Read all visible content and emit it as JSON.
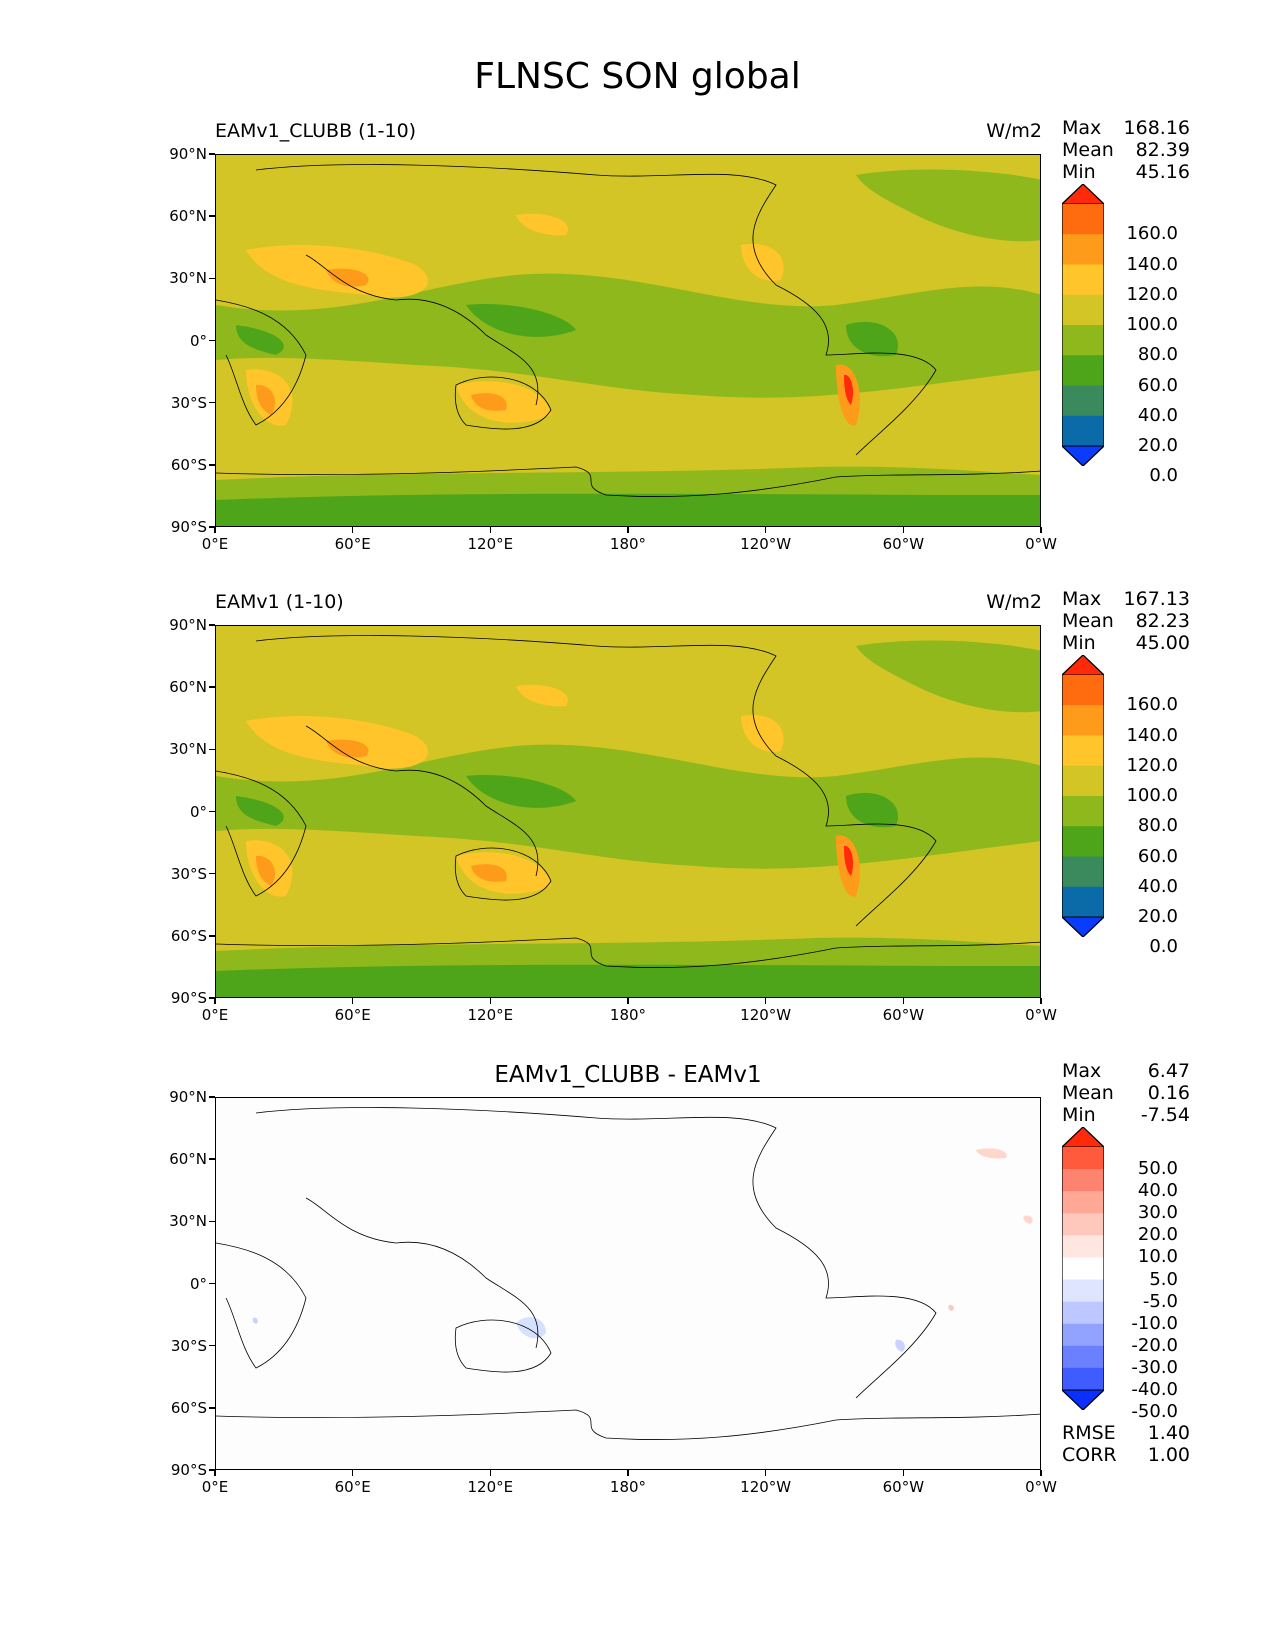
{
  "figure": {
    "title": "FLNSC SON global"
  },
  "chart_data": [
    {
      "type": "heatmap",
      "title_left": "EAMv1_CLUBB (1-10)",
      "units": "W/m2",
      "stats": {
        "max_label": "Max",
        "max": "168.16",
        "mean_label": "Mean",
        "mean": "82.39",
        "min_label": "Min",
        "min": "45.16"
      },
      "xticks": [
        "0°E",
        "60°E",
        "120°E",
        "180°",
        "120°W",
        "60°W",
        "0°W"
      ],
      "yticks": [
        "90°N",
        "60°N",
        "30°N",
        "0°",
        "30°S",
        "60°S",
        "90°S"
      ],
      "colorbar": {
        "levels": [
          "160.0",
          "140.0",
          "120.0",
          "100.0",
          "80.0",
          "60.0",
          "40.0",
          "20.0",
          "0.0"
        ],
        "colors": [
          "#ff2a0a",
          "#ff6c0f",
          "#ff9b1b",
          "#ffc52a",
          "#d2c525",
          "#8fb81c",
          "#4ea51a",
          "#3a8a5e",
          "#0a6ba8",
          "#0a3cff"
        ]
      }
    },
    {
      "type": "heatmap",
      "title_left": "EAMv1 (1-10)",
      "units": "W/m2",
      "stats": {
        "max_label": "Max",
        "max": "167.13",
        "mean_label": "Mean",
        "mean": "82.23",
        "min_label": "Min",
        "min": "45.00"
      },
      "xticks": [
        "0°E",
        "60°E",
        "120°E",
        "180°",
        "120°W",
        "60°W",
        "0°W"
      ],
      "yticks": [
        "90°N",
        "60°N",
        "30°N",
        "0°",
        "30°S",
        "60°S",
        "90°S"
      ],
      "colorbar": {
        "levels": [
          "160.0",
          "140.0",
          "120.0",
          "100.0",
          "80.0",
          "60.0",
          "40.0",
          "20.0",
          "0.0"
        ],
        "colors": [
          "#ff2a0a",
          "#ff6c0f",
          "#ff9b1b",
          "#ffc52a",
          "#d2c525",
          "#8fb81c",
          "#4ea51a",
          "#3a8a5e",
          "#0a6ba8",
          "#0a3cff"
        ]
      }
    },
    {
      "type": "heatmap",
      "title_center": "EAMv1_CLUBB - EAMv1",
      "stats": {
        "max_label": "Max",
        "max": "6.47",
        "mean_label": "Mean",
        "mean": "0.16",
        "min_label": "Min",
        "min": "-7.54"
      },
      "metrics": {
        "rmse_label": "RMSE",
        "rmse": "1.40",
        "corr_label": "CORR",
        "corr": "1.00"
      },
      "xticks": [
        "0°E",
        "60°E",
        "120°E",
        "180°",
        "120°W",
        "60°W",
        "0°W"
      ],
      "yticks": [
        "90°N",
        "60°N",
        "30°N",
        "0°",
        "30°S",
        "60°S",
        "90°S"
      ],
      "colorbar": {
        "levels": [
          "50.0",
          "40.0",
          "30.0",
          "20.0",
          "10.0",
          "5.0",
          "-5.0",
          "-10.0",
          "-20.0",
          "-30.0",
          "-40.0",
          "-50.0"
        ],
        "colors": [
          "#ff2a0a",
          "#ff5a3c",
          "#ff8470",
          "#ffa896",
          "#ffc8bc",
          "#ffe6e0",
          "#ffffff",
          "#dfe4ff",
          "#bcc8ff",
          "#91a3ff",
          "#6b80ff",
          "#3e5cff",
          "#0a2fff"
        ]
      }
    }
  ]
}
